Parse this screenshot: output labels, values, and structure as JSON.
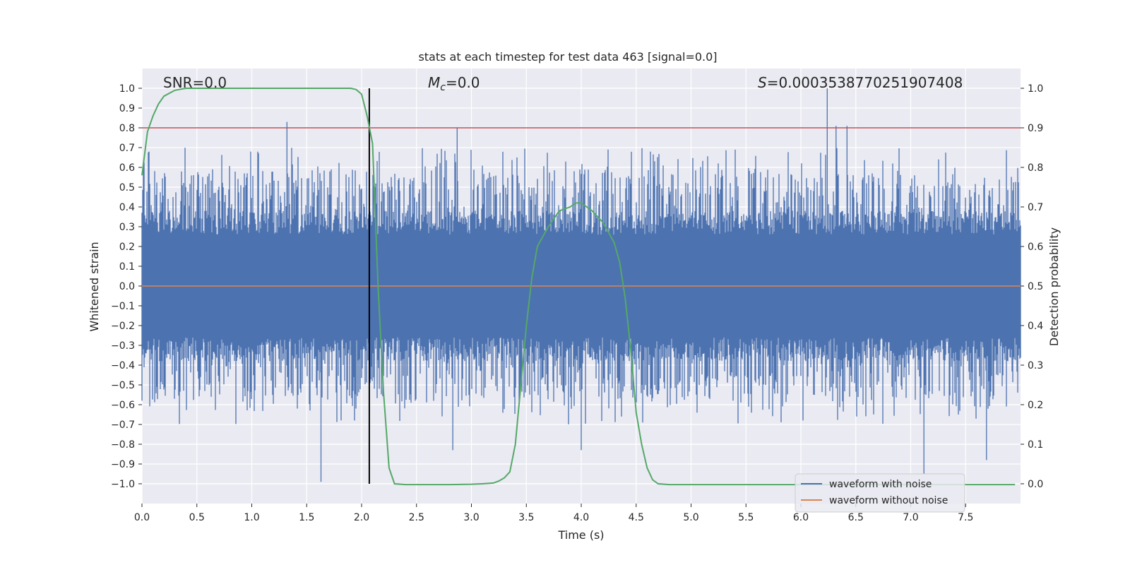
{
  "chart_data": {
    "type": "line",
    "title": "stats at each timestep for test data 463 [signal=0.0]",
    "xlabel": "Time (s)",
    "ylabel": "Whitened strain",
    "ylabel_right": "Detection probability",
    "xlim": [
      0.0,
      8.0
    ],
    "ylim": [
      -1.1,
      1.1
    ],
    "ylim_right": [
      -0.05,
      1.05
    ],
    "x_ticks": [
      "0.0",
      "0.5",
      "1.0",
      "1.5",
      "2.0",
      "2.5",
      "3.0",
      "3.5",
      "4.0",
      "4.5",
      "5.0",
      "5.5",
      "6.0",
      "6.5",
      "7.0",
      "7.5"
    ],
    "y_ticks": [
      "1.0",
      "0.9",
      "0.8",
      "0.7",
      "0.6",
      "0.5",
      "0.4",
      "0.3",
      "0.2",
      "0.1",
      "0.0",
      "-0.1",
      "-0.2",
      "-0.3",
      "-0.4",
      "-0.5",
      "-0.6",
      "-0.7",
      "-0.8",
      "-0.9",
      "-1.0"
    ],
    "y_ticks_right": [
      "1.0",
      "0.9",
      "0.8",
      "0.7",
      "0.6",
      "0.5",
      "0.4",
      "0.3",
      "0.2",
      "0.1",
      "0.0"
    ],
    "grid": true,
    "annotations": {
      "snr": "SNR=0.0",
      "mc_symbol": "M",
      "mc_sub": "c",
      "mc_value": "=0.0",
      "s_symbol": "S",
      "s_value": "=0.0003538770251907408"
    },
    "threshold_line": {
      "y_right": 0.9,
      "color": "#c44e52"
    },
    "detection_marker": {
      "x": 2.07,
      "color": "#000000"
    },
    "series": [
      {
        "name": "waveform with noise",
        "color": "#4c72b0",
        "kind": "noise",
        "envelope_typical": 0.4,
        "peaks": [
          {
            "x": 1.32,
            "y": 0.83
          },
          {
            "x": 2.87,
            "y": 0.8
          },
          {
            "x": 6.24,
            "y": 1.0
          },
          {
            "x": 6.32,
            "y": 0.81
          },
          {
            "x": 6.42,
            "y": 0.81
          },
          {
            "x": 1.63,
            "y": -0.99
          },
          {
            "x": 2.83,
            "y": -0.83
          },
          {
            "x": 4.0,
            "y": -0.83
          },
          {
            "x": 7.12,
            "y": -0.95
          },
          {
            "x": 7.69,
            "y": -0.88
          }
        ]
      },
      {
        "name": "waveform without noise",
        "color": "#dd8452",
        "x": [
          0.0,
          8.0
        ],
        "values": [
          0.0,
          0.0
        ]
      },
      {
        "name": "detection probability",
        "color": "#55a868",
        "axis": "right",
        "x": [
          0.0,
          0.05,
          0.1,
          0.15,
          0.2,
          0.3,
          0.4,
          0.5,
          0.7,
          1.0,
          1.5,
          1.9,
          1.95,
          2.0,
          2.05,
          2.1,
          2.15,
          2.2,
          2.25,
          2.3,
          2.4,
          2.6,
          2.8,
          3.0,
          3.1,
          3.2,
          3.25,
          3.3,
          3.35,
          3.4,
          3.45,
          3.5,
          3.55,
          3.6,
          3.7,
          3.8,
          3.9,
          3.95,
          4.0,
          4.05,
          4.1,
          4.2,
          4.3,
          4.35,
          4.4,
          4.45,
          4.5,
          4.55,
          4.6,
          4.65,
          4.7,
          4.8,
          5.0,
          6.0,
          7.0,
          7.95
        ],
        "values": [
          0.78,
          0.89,
          0.93,
          0.96,
          0.98,
          0.995,
          1.0,
          1.0,
          1.0,
          1.0,
          1.0,
          1.0,
          0.997,
          0.985,
          0.93,
          0.86,
          0.5,
          0.23,
          0.04,
          0.0,
          -0.002,
          -0.002,
          -0.002,
          -0.001,
          0.0,
          0.002,
          0.007,
          0.015,
          0.03,
          0.1,
          0.25,
          0.4,
          0.52,
          0.6,
          0.65,
          0.69,
          0.7,
          0.71,
          0.71,
          0.7,
          0.69,
          0.66,
          0.61,
          0.56,
          0.47,
          0.34,
          0.18,
          0.1,
          0.04,
          0.01,
          0.0,
          -0.002,
          -0.002,
          -0.002,
          -0.002,
          -0.002
        ]
      }
    ],
    "legend": {
      "placement": "lower-right",
      "entries": [
        "waveform with noise",
        "waveform without noise"
      ]
    }
  }
}
